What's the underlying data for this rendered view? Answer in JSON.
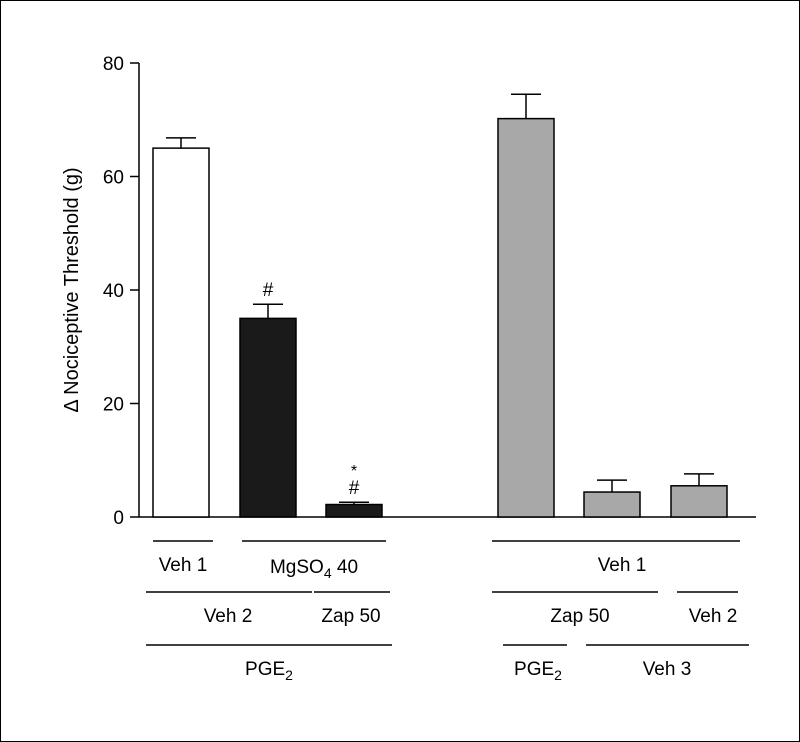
{
  "chart_data": {
    "type": "bar",
    "ylabel": "Δ Nociceptive Threshold (g)",
    "ylim": [
      0,
      80
    ],
    "yticks": [
      0,
      20,
      40,
      60,
      80
    ],
    "grid": false,
    "bars": [
      {
        "value": 65,
        "error": 1.8,
        "fill": "#ffffff",
        "marks": ""
      },
      {
        "value": 35,
        "error": 2.5,
        "fill": "#1a1a1a",
        "marks": "#"
      },
      {
        "value": 2.2,
        "error": 0.4,
        "fill": "#1a1a1a",
        "marks": "*\n#"
      },
      {
        "value": 70.2,
        "error": 4.3,
        "fill": "#a8a8a8",
        "marks": ""
      },
      {
        "value": 4.4,
        "error": 2.1,
        "fill": "#a8a8a8",
        "marks": ""
      },
      {
        "value": 5.5,
        "error": 2.1,
        "fill": "#a8a8a8",
        "marks": ""
      }
    ],
    "treatment_labels": {
      "veh1_left": "Veh 1",
      "mgso4": {
        "base": "MgSO",
        "sub": "4",
        "rest": " 40"
      },
      "veh2_left": "Veh 2",
      "zap50_left": "Zap 50",
      "pge2_left": {
        "base": "PGE",
        "sub": "2"
      },
      "veh1_right": "Veh 1",
      "zap50_right": "Zap 50",
      "veh2_right": "Veh 2",
      "pge2_right": {
        "base": "PGE",
        "sub": "2"
      },
      "veh3_right": "Veh 3"
    }
  }
}
